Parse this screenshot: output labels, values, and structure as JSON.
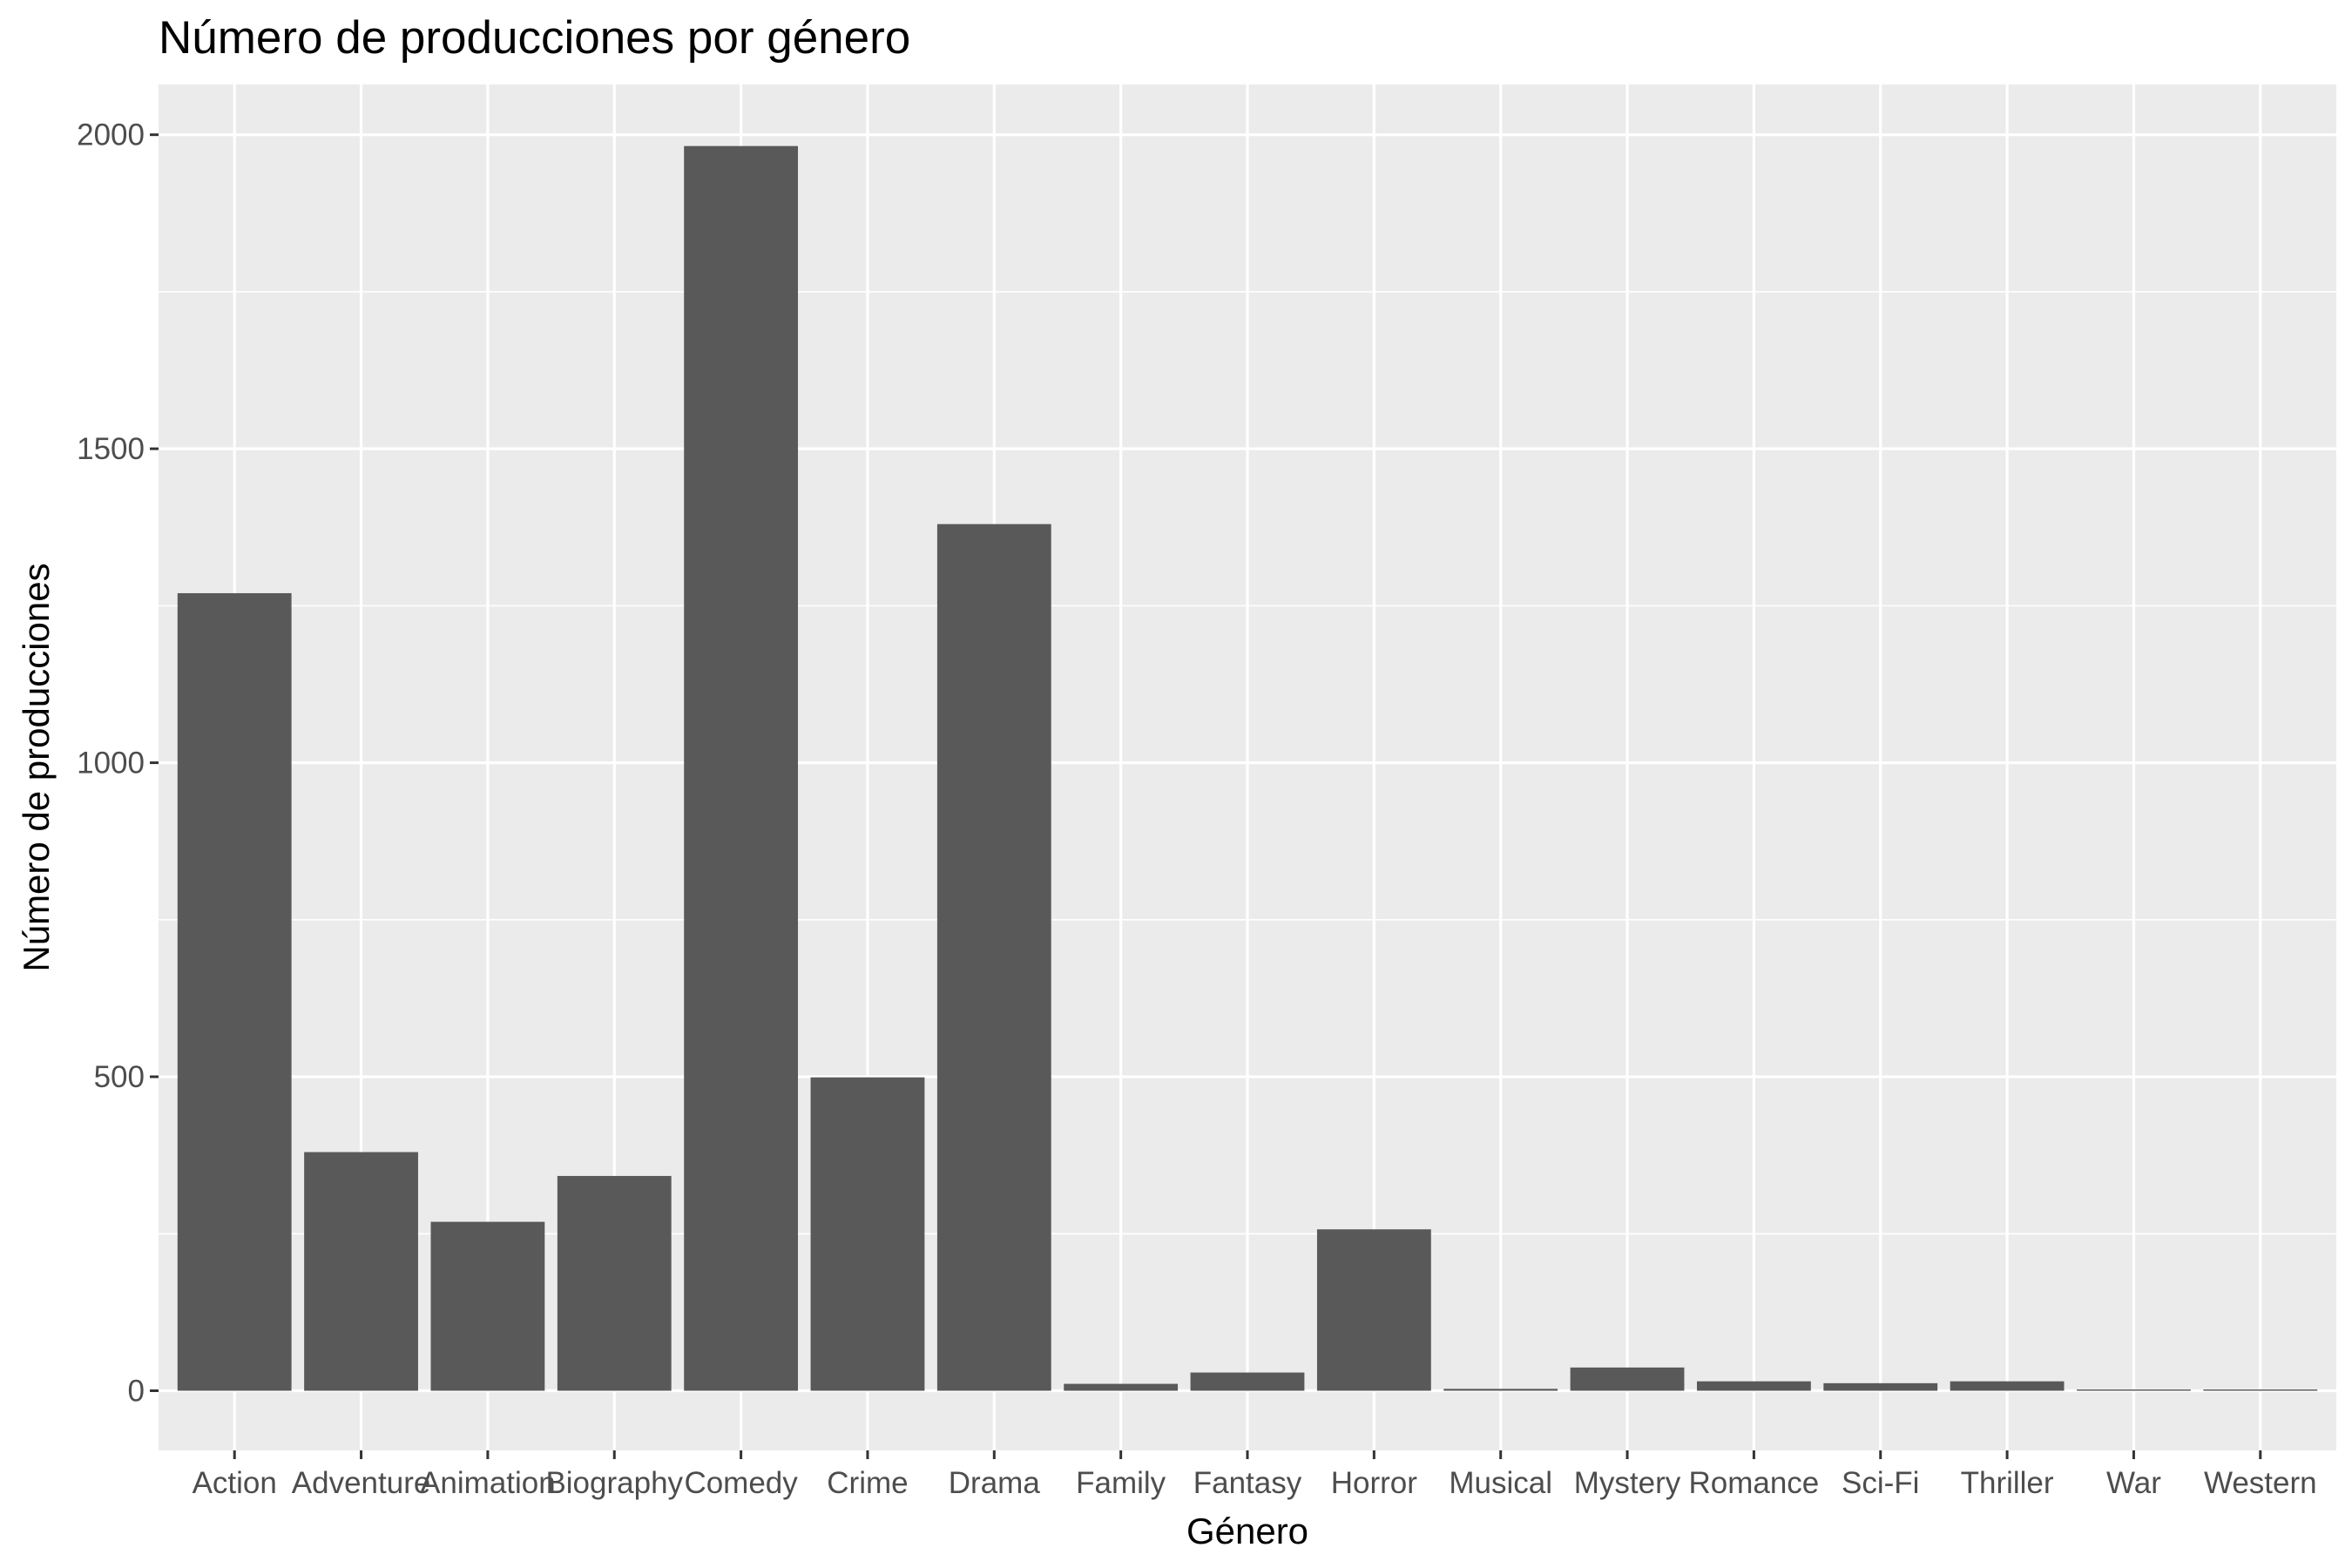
{
  "colors": {
    "panel_background": "#ebebeb",
    "grid_line": "#ffffff",
    "bar_fill": "#595959",
    "tick_color": "#333333",
    "tick_label_color": "#4d4d4d",
    "text_color": "#000000"
  },
  "chart_data": {
    "type": "bar",
    "title": "Número de producciones por género",
    "xlabel": "Género",
    "ylabel": "Número de producciones",
    "categories": [
      "Action",
      "Adventure",
      "Animation",
      "Biography",
      "Comedy",
      "Crime",
      "Drama",
      "Family",
      "Fantasy",
      "Horror",
      "Musical",
      "Mystery",
      "Romance",
      "Sci-Fi",
      "Thriller",
      "War",
      "Western"
    ],
    "values": [
      1270,
      380,
      269,
      342,
      1982,
      499,
      1380,
      11,
      29,
      257,
      3,
      37,
      15,
      12,
      15,
      2,
      2
    ],
    "ylim": [
      -95,
      2080
    ],
    "yticks": [
      0,
      500,
      1000,
      1500,
      2000
    ],
    "ytick_labels": [
      "0",
      "500",
      "1000",
      "1500",
      "2000"
    ],
    "grid": true,
    "legend": "none"
  }
}
